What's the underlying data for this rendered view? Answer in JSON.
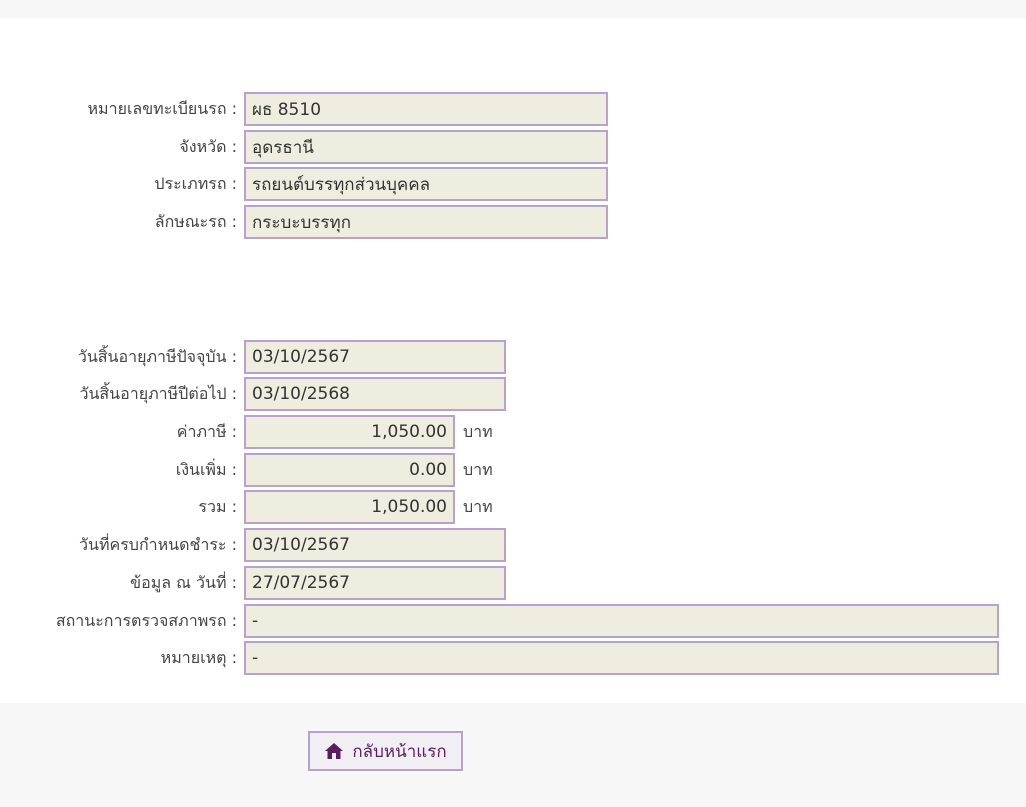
{
  "vehicle": [
    {
      "label": "หมายเลขทะเบียนรถ :",
      "value": "ผธ 8510"
    },
    {
      "label": "จังหวัด :",
      "value": "อุดรธานี"
    },
    {
      "label": "ประเภทรถ :",
      "value": "รถยนต์บรรทุกส่วนบุคคล"
    },
    {
      "label": "ลักษณะรถ :",
      "value": "กระบะบรรทุก"
    }
  ],
  "tax": {
    "current_expiry": {
      "label": "วันสิ้นอายุภาษีปัจจุบัน :",
      "value": "03/10/2567"
    },
    "next_expiry": {
      "label": "วันสิ้นอายุภาษีปีต่อไป :",
      "value": "03/10/2568"
    },
    "tax_amount": {
      "label": "ค่าภาษี :",
      "value": "1,050.00",
      "unit": "บาท"
    },
    "surcharge": {
      "label": "เงินเพิ่ม :",
      "value": "0.00",
      "unit": "บาท"
    },
    "total": {
      "label": "รวม :",
      "value": "1,050.00",
      "unit": "บาท"
    },
    "due_date": {
      "label": "วันที่ครบกำหนดชำระ :",
      "value": "03/10/2567"
    },
    "data_as_of": {
      "label": "ข้อมูล ณ วันที่ :",
      "value": "27/07/2567"
    },
    "inspection_status": {
      "label": "สถานะการตรวจสภาพรถ :",
      "value": "-"
    },
    "remark": {
      "label": "หมายเหตุ :",
      "value": "-"
    }
  },
  "home_button": {
    "label": "กลับหน้าแรก",
    "icon": "home-icon"
  },
  "colors": {
    "accent": "#5a1e5f",
    "border": "#b7a2cc",
    "field_bg": "#eeeddf"
  }
}
